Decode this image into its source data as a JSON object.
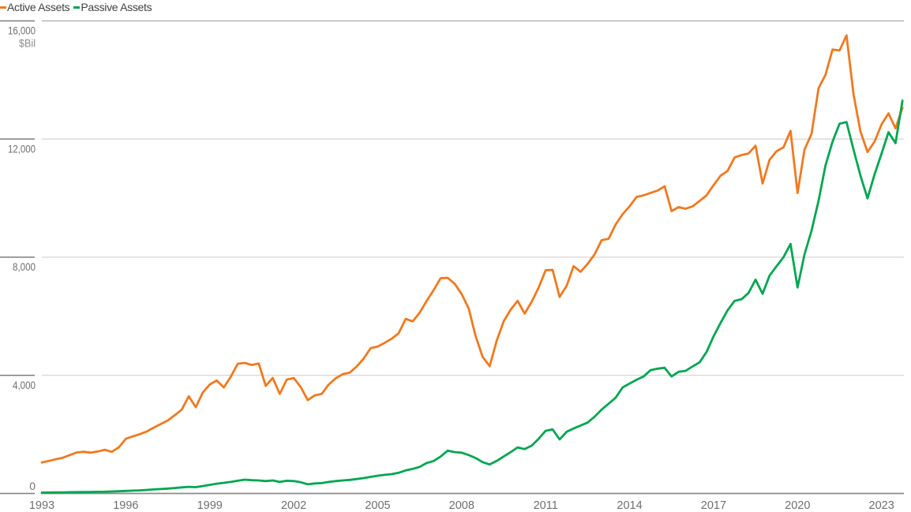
{
  "legend": {
    "items": [
      {
        "label": "Active Assets",
        "color": "#F1791F"
      },
      {
        "label": "Passive Assets",
        "color": "#00A651"
      }
    ]
  },
  "y_axis": {
    "unit_label": "$Bil",
    "ticks": [
      {
        "value": 16000,
        "label": "16,000"
      },
      {
        "value": 12000,
        "label": "12,000"
      },
      {
        "value": 8000,
        "label": "8,000"
      },
      {
        "value": 4000,
        "label": "4,000"
      },
      {
        "value": 0,
        "label": "0"
      }
    ]
  },
  "x_axis": {
    "ticks": [
      1993,
      1996,
      1999,
      2002,
      2005,
      2008,
      2011,
      2014,
      2017,
      2020,
      2023
    ]
  },
  "chart_data": {
    "type": "line",
    "title": "",
    "unit": "$Bil",
    "frequency": "quarterly",
    "x_start": 1993.0,
    "x_step_years": 0.25,
    "xlim": [
      1993,
      2023.8
    ],
    "ylim": [
      0,
      16000
    ],
    "grid": "horizontal",
    "legend_position": "top-left",
    "series": [
      {
        "name": "Active Assets",
        "color": "#F1791F",
        "values": [
          1050,
          1100,
          1160,
          1210,
          1300,
          1390,
          1410,
          1380,
          1420,
          1480,
          1410,
          1560,
          1850,
          1930,
          2010,
          2100,
          2230,
          2350,
          2470,
          2650,
          2840,
          3290,
          2920,
          3420,
          3690,
          3825,
          3590,
          3950,
          4390,
          4420,
          4350,
          4400,
          3640,
          3910,
          3370,
          3855,
          3910,
          3600,
          3160,
          3320,
          3370,
          3690,
          3900,
          4040,
          4090,
          4300,
          4570,
          4920,
          4975,
          5100,
          5240,
          5425,
          5910,
          5825,
          6120,
          6520,
          6890,
          7290,
          7300,
          7100,
          6750,
          6265,
          5325,
          4625,
          4310,
          5165,
          5825,
          6225,
          6520,
          6090,
          6490,
          6970,
          7560,
          7570,
          6655,
          7030,
          7695,
          7505,
          7775,
          8095,
          8575,
          8625,
          9105,
          9455,
          9720,
          10040,
          10095,
          10175,
          10255,
          10400,
          9560,
          9695,
          9640,
          9720,
          9905,
          10095,
          10440,
          10760,
          10920,
          11375,
          11460,
          11510,
          11775,
          10495,
          11295,
          11590,
          11720,
          12280,
          10175,
          11640,
          12175,
          13720,
          14175,
          15030,
          15000,
          15510,
          13510,
          12255,
          11560,
          11910,
          12490,
          12870,
          12360,
          13060
        ]
      },
      {
        "name": "Passive Assets",
        "color": "#00A651",
        "values": [
          30,
          32,
          35,
          38,
          42,
          45,
          48,
          50,
          55,
          60,
          67,
          75,
          85,
          95,
          105,
          120,
          135,
          150,
          165,
          185,
          205,
          225,
          215,
          250,
          290,
          330,
          360,
          390,
          430,
          467,
          450,
          440,
          420,
          440,
          390,
          430,
          420,
          380,
          310,
          340,
          350,
          390,
          420,
          440,
          460,
          490,
          520,
          560,
          600,
          630,
          655,
          700,
          780,
          830,
          900,
          1030,
          1100,
          1250,
          1450,
          1400,
          1380,
          1300,
          1200,
          1060,
          980,
          1100,
          1250,
          1400,
          1560,
          1500,
          1620,
          1850,
          2120,
          2170,
          1830,
          2090,
          2200,
          2300,
          2400,
          2600,
          2840,
          3040,
          3240,
          3590,
          3720,
          3850,
          3960,
          4175,
          4225,
          4255,
          3960,
          4120,
          4150,
          4300,
          4440,
          4790,
          5320,
          5775,
          6200,
          6520,
          6575,
          6790,
          7240,
          6760,
          7375,
          7695,
          8000,
          8450,
          6975,
          8095,
          8895,
          9910,
          11110,
          11910,
          12520,
          12575,
          11640,
          10760,
          9990,
          10800,
          11500,
          12230,
          11860,
          13300
        ]
      }
    ]
  },
  "style_colors": {
    "top_gridline": "#ABABAB",
    "gridline": "#D5D5D5",
    "axis_line": "#8A8A8A",
    "tick_line": "#7E7E7E",
    "axis_label": "#6E6E6E",
    "unit_label": "#8B8B8B",
    "legend_text": "#414141"
  }
}
